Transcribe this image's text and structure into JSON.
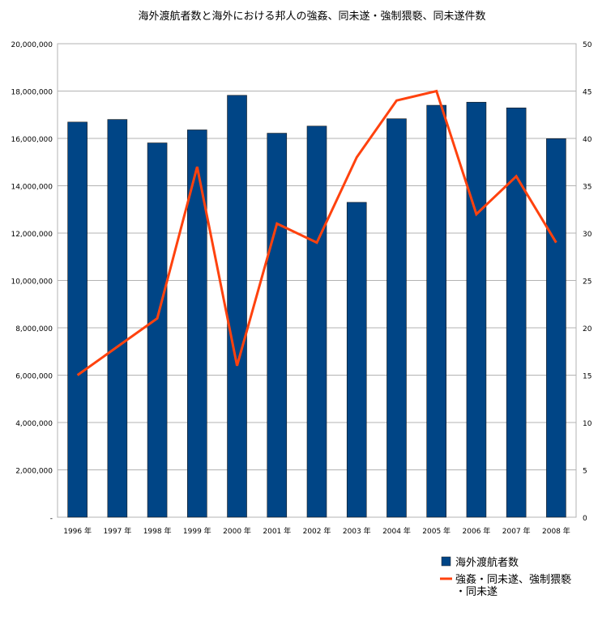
{
  "chart_data": {
    "type": "bar+line",
    "title": "海外渡航者数と海外における邦人の強姦、同未遂・強制猥褻、同未遂件数",
    "categories": [
      "1996 年",
      "1997 年",
      "1998 年",
      "1999 年",
      "2000 年",
      "2001 年",
      "2002 年",
      "2003 年",
      "2004 年",
      "2005 年",
      "2006 年",
      "2007 年",
      "2008 年"
    ],
    "series": [
      {
        "name": "海外渡航者数",
        "type": "bar",
        "axis": "left",
        "color": "#004586",
        "values": [
          16690000,
          16800000,
          15810000,
          16360000,
          17820000,
          16220000,
          16520000,
          13300000,
          16830000,
          17400000,
          17530000,
          17290000,
          15990000
        ]
      },
      {
        "name": "強姦・同未遂、強制猥褻・同未遂",
        "type": "line",
        "axis": "right",
        "color": "#ff420e",
        "values": [
          15,
          18,
          21,
          37,
          16,
          31,
          29,
          38,
          44,
          45,
          32,
          36,
          29
        ]
      }
    ],
    "left_axis": {
      "ylim": [
        0,
        20000000
      ],
      "ticks": [
        "-",
        "2,000,000",
        "4,000,000",
        "6,000,000",
        "8,000,000",
        "10,000,000",
        "12,000,000",
        "14,000,000",
        "16,000,000",
        "18,000,000",
        "20,000,000"
      ]
    },
    "right_axis": {
      "ylim": [
        0,
        50
      ],
      "ticks": [
        "0",
        "5",
        "10",
        "15",
        "20",
        "25",
        "30",
        "35",
        "40",
        "45",
        "50"
      ]
    },
    "grid": true,
    "legend": "bottom-right"
  }
}
